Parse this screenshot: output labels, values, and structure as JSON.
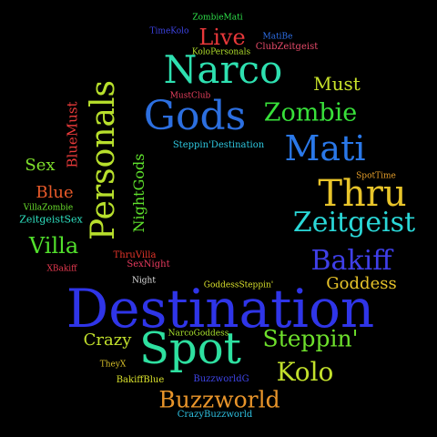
{
  "words": [
    {
      "text": "ZombieMati",
      "color": "#2ee04a"
    },
    {
      "text": "TimeKolo",
      "color": "#3f45e8"
    },
    {
      "text": "Live",
      "color": "#e8383a"
    },
    {
      "text": "MatiBe",
      "color": "#2e6fe8"
    },
    {
      "text": "ClubZeitgeist",
      "color": "#e84b6a"
    },
    {
      "text": "KoloPersonals",
      "color": "#b2e02c"
    },
    {
      "text": "Narco",
      "color": "#2ee0b0"
    },
    {
      "text": "Must",
      "color": "#c6e02a"
    },
    {
      "text": "Personals",
      "color": "#b8e02c"
    },
    {
      "text": "BlueMust",
      "color": "#e83a3a"
    },
    {
      "text": "MustClub",
      "color": "#e8405e"
    },
    {
      "text": "Gods",
      "color": "#2c6fe0"
    },
    {
      "text": "Zombie",
      "color": "#38e03a"
    },
    {
      "text": "Steppin'Destination",
      "color": "#2ec8e0"
    },
    {
      "text": "Mati",
      "color": "#2a78e8"
    },
    {
      "text": "Sex",
      "color": "#7fe02c"
    },
    {
      "text": "NightGods",
      "color": "#5ee02c"
    },
    {
      "text": "SpotTime",
      "color": "#e8a02a"
    },
    {
      "text": "Blue",
      "color": "#e85a2a"
    },
    {
      "text": "Thru",
      "color": "#e8c42a"
    },
    {
      "text": "VillaZombie",
      "color": "#6ae02c"
    },
    {
      "text": "ZeitgeistSex",
      "color": "#2ee0c0"
    },
    {
      "text": "Zeitgeist",
      "color": "#2ad8d8"
    },
    {
      "text": "Villa",
      "color": "#52e02c"
    },
    {
      "text": "Bakiff",
      "color": "#3f3fe8"
    },
    {
      "text": "ThruVilla",
      "color": "#e8352a"
    },
    {
      "text": "SexNight",
      "color": "#e83a5e"
    },
    {
      "text": "XBakiff",
      "color": "#e83a50"
    },
    {
      "text": "Night",
      "color": "#e0e0e0"
    },
    {
      "text": "GoddessSteppin'",
      "color": "#d8e02c"
    },
    {
      "text": "Goddess",
      "color": "#e8c42a"
    },
    {
      "text": "Destination",
      "color": "#2f35e8"
    },
    {
      "text": "NarcoGoddess",
      "color": "#a8e02c"
    },
    {
      "text": "Crazy",
      "color": "#c2e02c"
    },
    {
      "text": "Spot",
      "color": "#2ee0a0"
    },
    {
      "text": "Steppin'",
      "color": "#6ee02c"
    },
    {
      "text": "TheyX",
      "color": "#d8c02a"
    },
    {
      "text": "Kolo",
      "color": "#c2e02c"
    },
    {
      "text": "BakiffBlue",
      "color": "#d8e02c"
    },
    {
      "text": "BuzzworldG",
      "color": "#3f45e8"
    },
    {
      "text": "Buzzworld",
      "color": "#e8942a"
    },
    {
      "text": "CrazyBuzzworld",
      "color": "#2ec0e0"
    }
  ]
}
